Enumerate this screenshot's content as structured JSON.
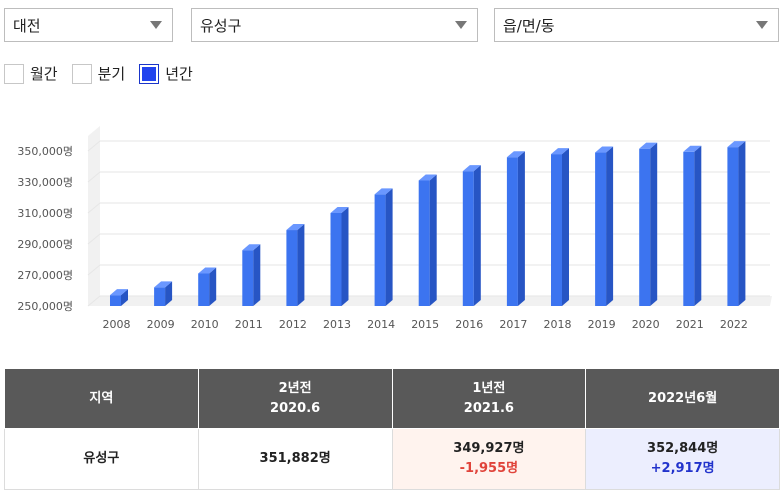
{
  "filters": {
    "city": "대전",
    "district": "유성구",
    "town": "읍/면/동"
  },
  "periods": [
    {
      "label": "월간",
      "checked": false
    },
    {
      "label": "분기",
      "checked": false
    },
    {
      "label": "년간",
      "checked": true
    }
  ],
  "colors": {
    "bar_front": "#3c74f0",
    "bar_side": "#2755c4",
    "bar_top": "#6a97ff",
    "grid": "#e6e6e6"
  },
  "chart_data": {
    "type": "bar",
    "categories": [
      "2008",
      "2009",
      "2010",
      "2011",
      "2012",
      "2013",
      "2014",
      "2015",
      "2016",
      "2017",
      "2018",
      "2019",
      "2020",
      "2021",
      "2022"
    ],
    "values": [
      257000,
      262000,
      271000,
      286000,
      299000,
      310000,
      322000,
      331000,
      337000,
      346000,
      348000,
      349000,
      351500,
      349500,
      352500
    ],
    "y_ticks": [
      "250,000명",
      "270,000명",
      "290,000명",
      "310,000명",
      "330,000명",
      "350,000명"
    ],
    "ylim": [
      250000,
      360000
    ],
    "grid": true
  },
  "table": {
    "headers": [
      {
        "line1": "지역",
        "line2": ""
      },
      {
        "line1": "2년전",
        "line2": "2020.6"
      },
      {
        "line1": "1년전",
        "line2": "2021.6"
      },
      {
        "line1": "2022년6월",
        "line2": ""
      }
    ],
    "row": {
      "region": "유성구",
      "two_years": "351,882명",
      "one_year": "349,927명",
      "one_year_diff": "-1,955명",
      "current": "352,844명",
      "current_diff": "+2,917명"
    }
  }
}
